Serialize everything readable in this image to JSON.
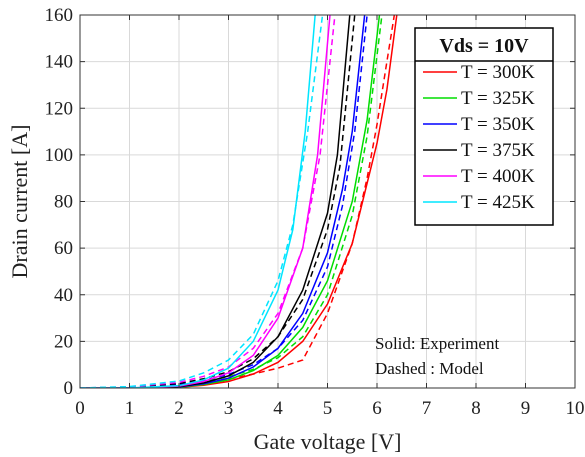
{
  "chart_data": {
    "type": "line",
    "xlabel": "Gate voltage [V]",
    "ylabel": "Drain current [A]",
    "xlim": [
      0,
      10
    ],
    "ylim": [
      0,
      160
    ],
    "xticks": [
      0,
      1,
      2,
      3,
      4,
      5,
      6,
      7,
      8,
      9,
      10
    ],
    "yticks": [
      0,
      20,
      40,
      60,
      80,
      100,
      120,
      140,
      160
    ],
    "grid": true,
    "legend": {
      "title": "Vds = 10V",
      "placement": "top-right",
      "entries": [
        "T = 300K",
        "T = 325K",
        "T = 350K",
        "T = 375K",
        "T = 400K",
        "T = 425K"
      ]
    },
    "annotations": [
      "Solid: Experiment",
      "Dashed : Model"
    ],
    "series": [
      {
        "name": "T = 300K",
        "color": "#ff0000",
        "experiment": {
          "x": [
            0,
            1,
            2,
            2.5,
            3,
            3.5,
            4,
            4.5,
            5,
            5.5,
            6,
            6.2,
            6.4
          ],
          "y": [
            0,
            0,
            0.3,
            1.2,
            2.8,
            6,
            11,
            20,
            36,
            62,
            105,
            128,
            160
          ]
        },
        "model": {
          "x": [
            0,
            1,
            2,
            2.5,
            3,
            3.5,
            4,
            4.5,
            5,
            5.5,
            5.8,
            6,
            6.2,
            6.35
          ],
          "y": [
            0,
            0.2,
            1,
            2.2,
            3.8,
            6,
            8.5,
            12,
            32,
            62,
            90,
            113,
            140,
            160
          ]
        }
      },
      {
        "name": "T = 325K",
        "color": "#00dd00",
        "experiment": {
          "x": [
            0,
            1,
            2,
            2.5,
            3,
            3.5,
            4,
            4.5,
            5,
            5.5,
            5.8,
            6.05
          ],
          "y": [
            0,
            0,
            0.4,
            1.5,
            3.5,
            7.5,
            14,
            26,
            46,
            80,
            115,
            160
          ]
        },
        "model": {
          "x": [
            0,
            1,
            2,
            2.5,
            3,
            3.5,
            4,
            4.5,
            5,
            5.5,
            5.8,
            6.1
          ],
          "y": [
            0,
            0.3,
            1.3,
            2.8,
            4.8,
            8,
            13,
            22,
            40,
            74,
            108,
            160
          ]
        }
      },
      {
        "name": "T = 350K",
        "color": "#0000ff",
        "experiment": {
          "x": [
            0,
            1,
            2,
            2.5,
            3,
            3.5,
            4,
            4.5,
            5,
            5.3,
            5.5,
            5.75
          ],
          "y": [
            0,
            0,
            0.5,
            1.8,
            4.2,
            9,
            17,
            32,
            58,
            85,
            110,
            160
          ]
        },
        "model": {
          "x": [
            0,
            1,
            2,
            2.5,
            3,
            3.5,
            4,
            4.5,
            5,
            5.3,
            5.55,
            5.8
          ],
          "y": [
            0,
            0.3,
            1.6,
            3.3,
            5.8,
            10,
            17,
            29,
            52,
            78,
            110,
            160
          ]
        }
      },
      {
        "name": "T = 375K",
        "color": "#000000",
        "experiment": {
          "x": [
            0,
            1,
            2,
            2.5,
            3,
            3.5,
            4,
            4.5,
            5,
            5.2,
            5.45
          ],
          "y": [
            0,
            0,
            0.6,
            2.2,
            5.2,
            11,
            22,
            42,
            75,
            100,
            160
          ]
        },
        "model": {
          "x": [
            0,
            1,
            2,
            2.5,
            3,
            3.5,
            4,
            4.5,
            5,
            5.25,
            5.55
          ],
          "y": [
            0,
            0.4,
            1.9,
            4,
            7,
            12.5,
            22,
            38,
            68,
            95,
            160
          ]
        }
      },
      {
        "name": "T = 400K",
        "color": "#ff00ff",
        "experiment": {
          "x": [
            0,
            1,
            2,
            2.5,
            3,
            3.5,
            4,
            4.5,
            4.8,
            5.05
          ],
          "y": [
            0,
            0,
            0.8,
            2.8,
            6.5,
            14,
            30,
            60,
            100,
            160
          ]
        },
        "model": {
          "x": [
            0,
            1,
            2,
            2.5,
            3,
            3.5,
            4,
            4.5,
            4.85,
            5.15
          ],
          "y": [
            0,
            0.5,
            2.4,
            5,
            9,
            17,
            32,
            60,
            100,
            160
          ]
        }
      },
      {
        "name": "T = 425K",
        "color": "#00e5ff",
        "experiment": {
          "x": [
            0,
            1,
            2,
            2.5,
            3,
            3.5,
            4,
            4.3,
            4.55,
            4.75
          ],
          "y": [
            0,
            0,
            1,
            3.5,
            8.5,
            20,
            42,
            68,
            110,
            160
          ]
        },
        "model": {
          "x": [
            0,
            1,
            2,
            2.5,
            3,
            3.5,
            4,
            4.3,
            4.6,
            4.9
          ],
          "y": [
            0,
            0.6,
            3,
            6.5,
            12,
            23,
            46,
            70,
            110,
            160
          ]
        }
      }
    ]
  }
}
